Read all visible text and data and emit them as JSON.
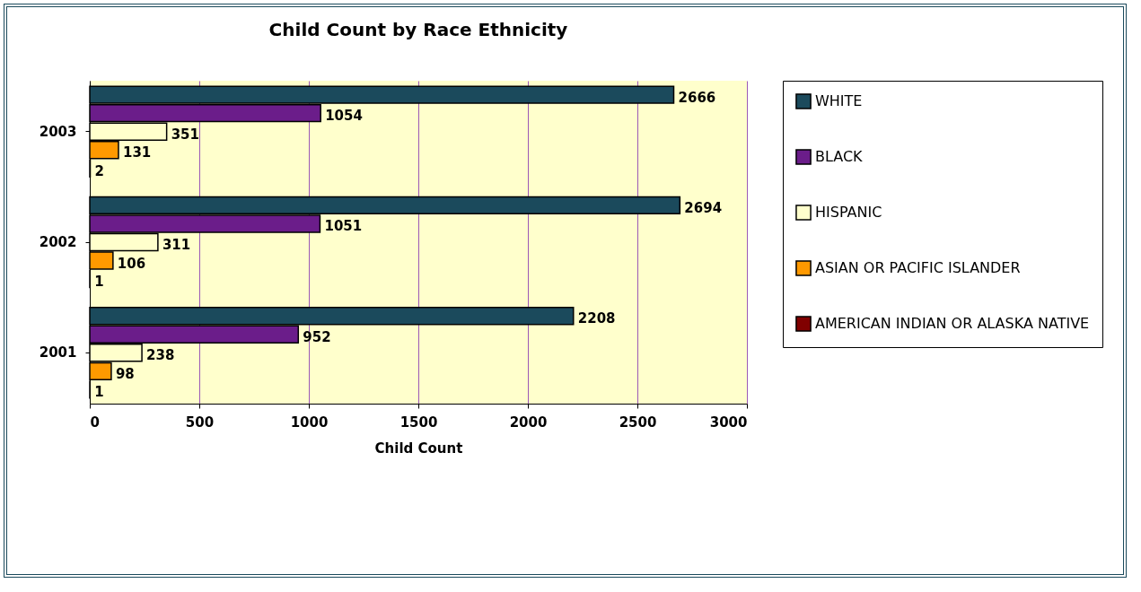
{
  "chart_data": {
    "type": "bar",
    "orientation": "horizontal",
    "title": "Child Count by Race Ethnicity",
    "xlabel": "Child Count",
    "categories": [
      "2003",
      "2002",
      "2001"
    ],
    "series": [
      {
        "name": "WHITE",
        "color": "#1b4a5c",
        "values": [
          2666,
          2694,
          2208
        ]
      },
      {
        "name": "BLACK",
        "color": "#6b1d8a",
        "values": [
          1054,
          1051,
          952
        ]
      },
      {
        "name": "HISPANIC",
        "color": "#ffffcc",
        "values": [
          351,
          311,
          238
        ]
      },
      {
        "name": "ASIAN OR PACIFIC ISLANDER",
        "color": "#ff9900",
        "values": [
          131,
          106,
          98
        ]
      },
      {
        "name": "AMERICAN INDIAN OR ALASKA NATIVE",
        "color": "#800000",
        "values": [
          2,
          1,
          1
        ]
      }
    ],
    "xlim": [
      0,
      3000
    ],
    "xticks": [
      0,
      500,
      1000,
      1500,
      2000,
      2500,
      3000
    ],
    "grid": "x",
    "legend": "right",
    "data_labels": true
  }
}
